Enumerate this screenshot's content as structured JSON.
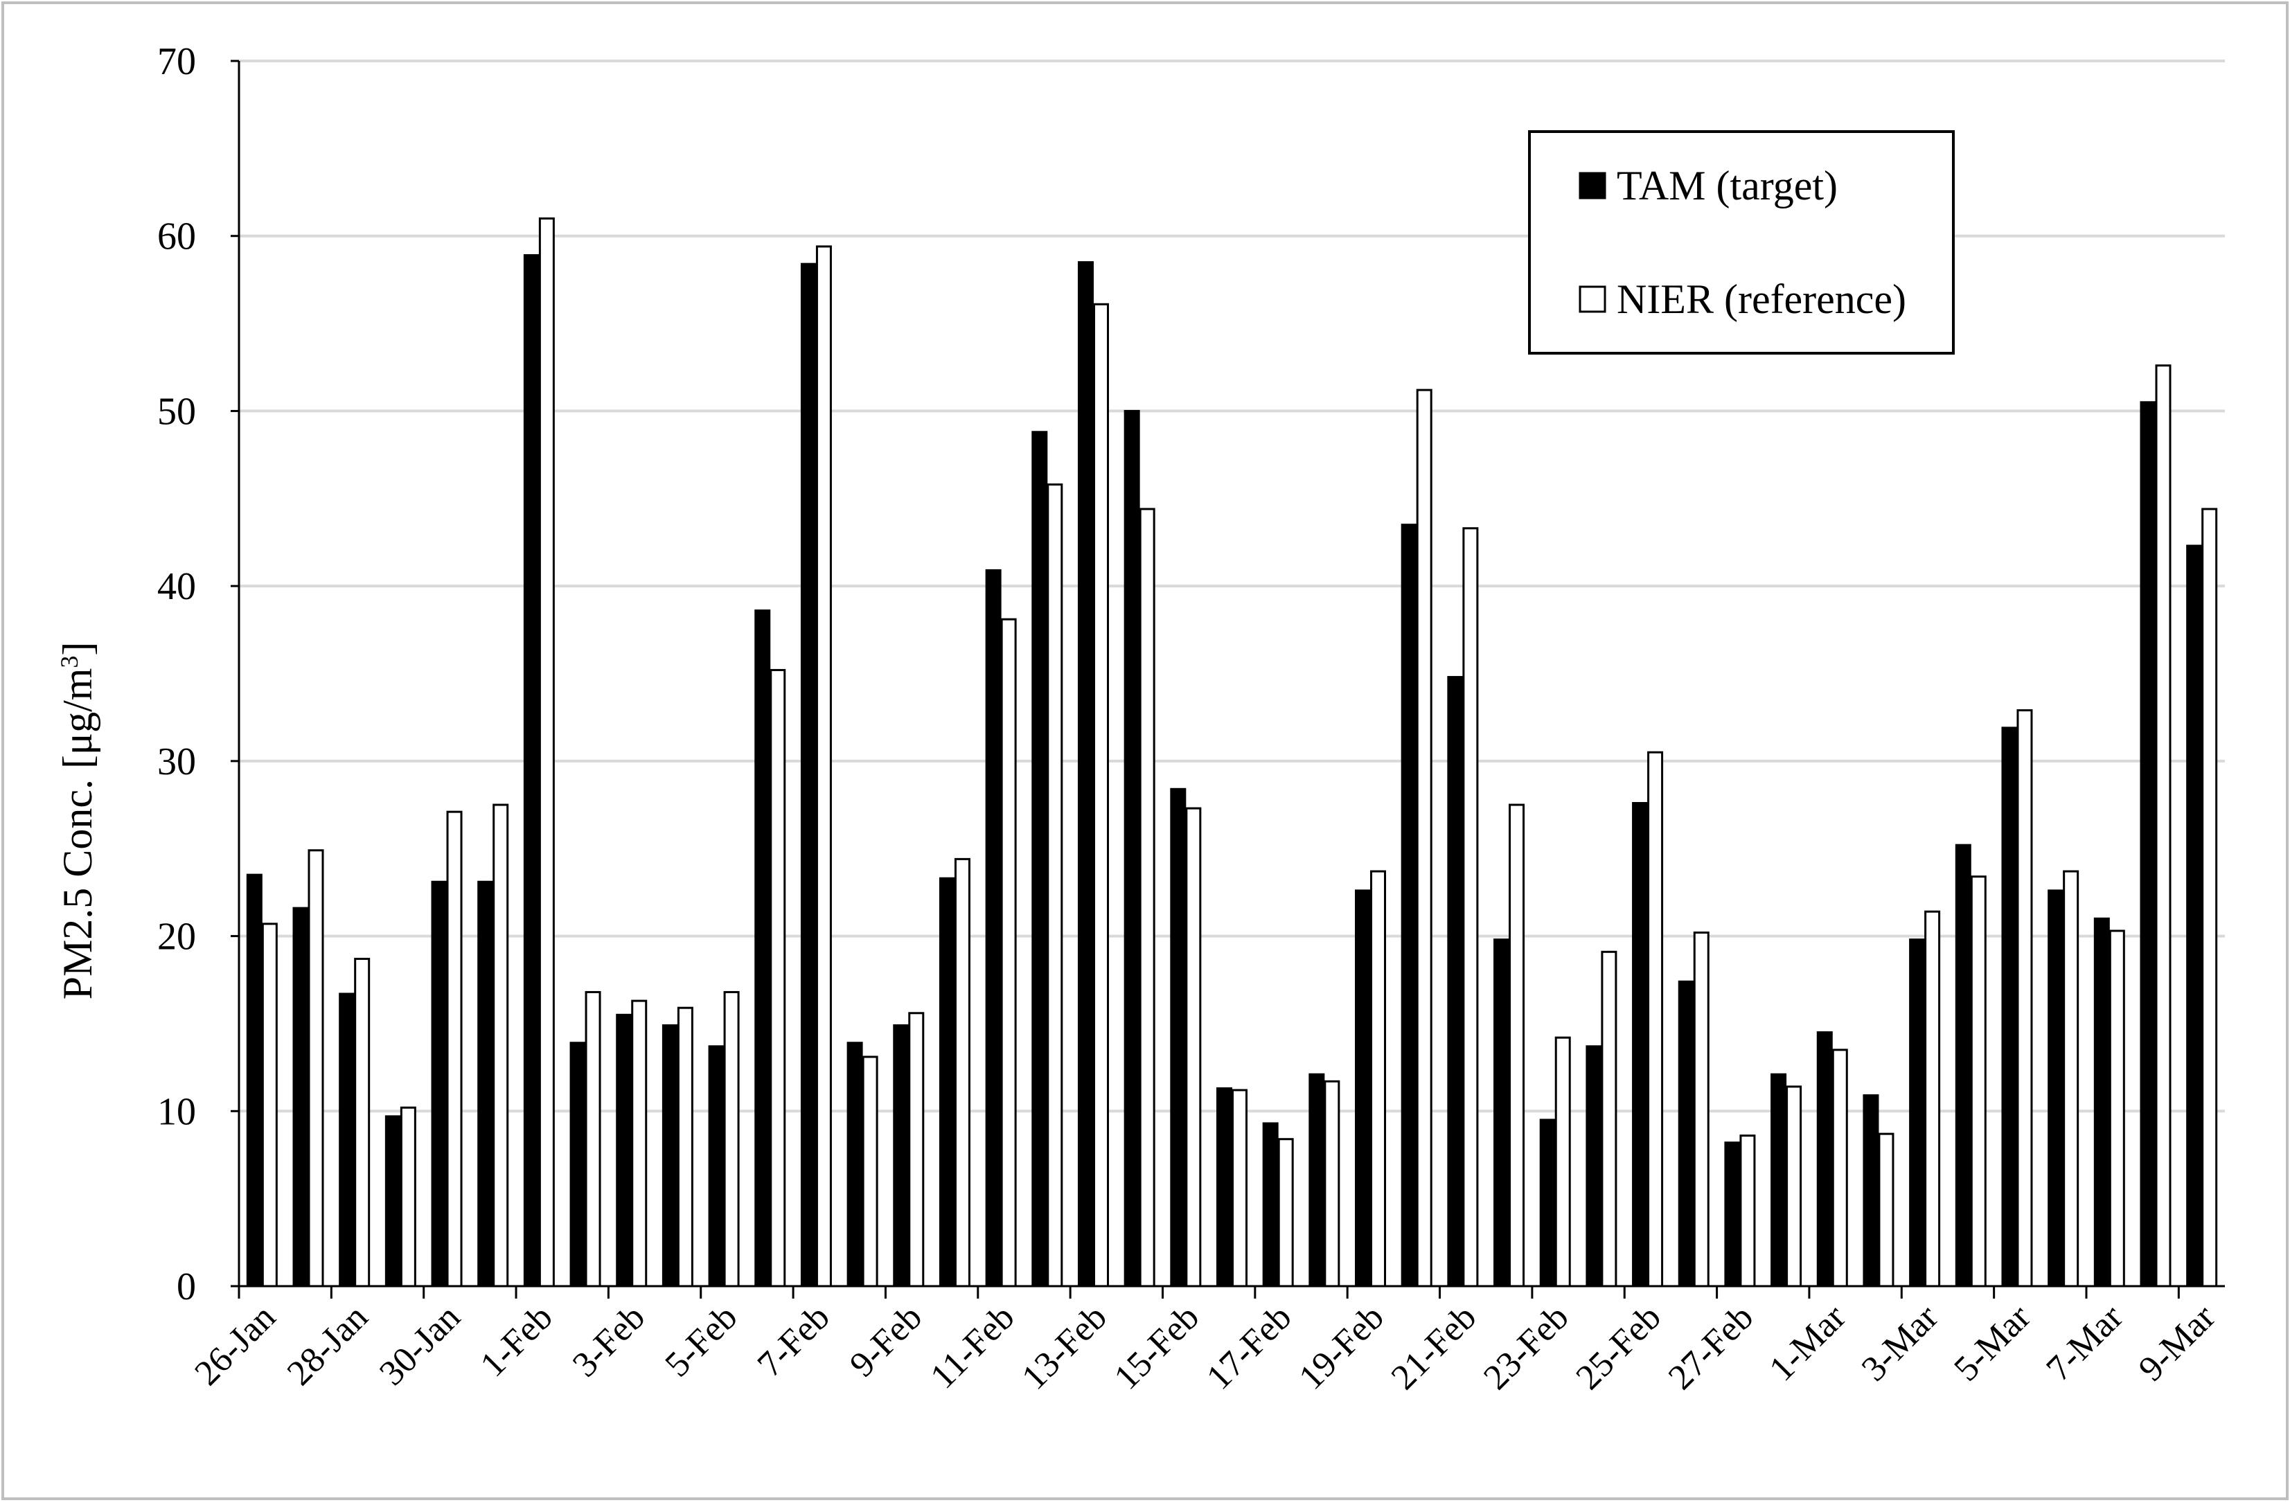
{
  "chart_data": {
    "type": "bar",
    "title": "",
    "xlabel": "",
    "ylabel": "PM2.5 Conc. [μg/m",
    "ylabel_superscript": "3",
    "ylabel_close": "]",
    "ylim": [
      0,
      70
    ],
    "y_ticks": [
      "0",
      "10",
      "20",
      "30",
      "40",
      "50",
      "60",
      "70"
    ],
    "grid": true,
    "legend_position": "top-right",
    "categories": [
      "26-Jan",
      "27-Jan",
      "28-Jan",
      "29-Jan",
      "30-Jan",
      "31-Jan",
      "1-Feb",
      "2-Feb",
      "3-Feb",
      "4-Feb",
      "5-Feb",
      "6-Feb",
      "7-Feb",
      "8-Feb",
      "9-Feb",
      "10-Feb",
      "11-Feb",
      "12-Feb",
      "13-Feb",
      "14-Feb",
      "15-Feb",
      "16-Feb",
      "17-Feb",
      "18-Feb",
      "19-Feb",
      "20-Feb",
      "21-Feb",
      "22-Feb",
      "23-Feb",
      "24-Feb",
      "25-Feb",
      "26-Feb",
      "27-Feb",
      "28-Feb",
      "1-Mar",
      "2-Mar",
      "3-Mar",
      "4-Mar",
      "5-Mar",
      "6-Mar",
      "7-Mar",
      "8-Mar",
      "9-Mar"
    ],
    "x_tick_labels": [
      "26-Jan",
      "28-Jan",
      "30-Jan",
      "1-Feb",
      "3-Feb",
      "5-Feb",
      "7-Feb",
      "9-Feb",
      "11-Feb",
      "13-Feb",
      "15-Feb",
      "17-Feb",
      "19-Feb",
      "21-Feb",
      "23-Feb",
      "25-Feb",
      "27-Feb",
      "1-Mar",
      "3-Mar",
      "5-Mar",
      "7-Mar",
      "9-Mar"
    ],
    "series": [
      {
        "name": "TAM (target)",
        "color": "#000000",
        "values": [
          23.5,
          21.6,
          16.7,
          9.7,
          23.1,
          23.1,
          58.9,
          13.9,
          15.5,
          14.9,
          13.7,
          38.6,
          58.4,
          13.9,
          14.9,
          23.3,
          40.9,
          48.8,
          58.5,
          50.0,
          28.4,
          11.3,
          9.3,
          12.1,
          22.6,
          43.5,
          34.8,
          19.8,
          9.5,
          13.7,
          27.6,
          17.4,
          8.2,
          12.1,
          14.5,
          10.9,
          19.8,
          25.2,
          31.9,
          22.6,
          21.0,
          50.5,
          42.3
        ]
      },
      {
        "name": "NIER (reference)",
        "color": "#ffffff",
        "values": [
          20.7,
          24.9,
          18.7,
          10.2,
          27.1,
          27.5,
          61.0,
          16.8,
          16.3,
          15.9,
          16.8,
          35.2,
          59.4,
          13.1,
          15.6,
          24.4,
          38.1,
          45.8,
          56.1,
          44.4,
          27.3,
          11.2,
          8.4,
          11.7,
          23.7,
          51.2,
          43.3,
          27.5,
          14.2,
          19.1,
          30.5,
          20.2,
          8.6,
          11.4,
          13.5,
          8.7,
          21.4,
          23.4,
          32.9,
          23.7,
          20.3,
          52.6,
          44.4
        ]
      }
    ]
  }
}
